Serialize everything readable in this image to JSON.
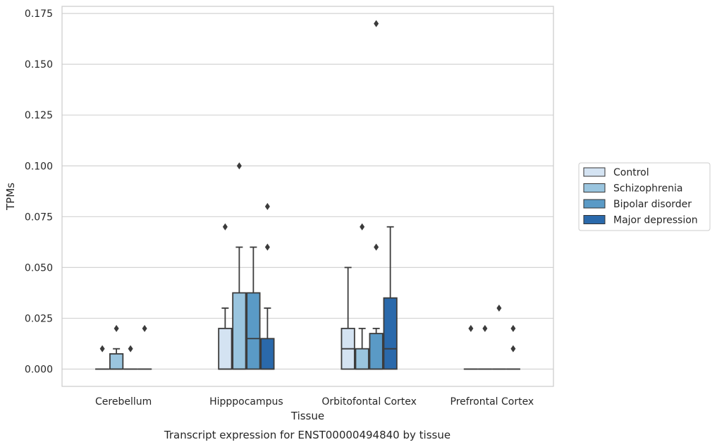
{
  "chart_data": {
    "type": "boxplot",
    "caption": "Transcript expression for ENST00000494840 by tissue",
    "xlabel": "Tissue",
    "ylabel": "TPMs",
    "ylim": [
      -0.0085,
      0.1785
    ],
    "yticks": [
      "0.000",
      "0.025",
      "0.050",
      "0.075",
      "0.100",
      "0.125",
      "0.150",
      "0.175"
    ],
    "ytick_values": [
      0,
      0.025,
      0.05,
      0.075,
      0.1,
      0.125,
      0.15,
      0.175
    ],
    "grid": true,
    "legend_position": "right",
    "categories": [
      "Cerebellum",
      "Hipppocampus",
      "Orbitofontal Cortex",
      "Prefrontal Cortex"
    ],
    "series": [
      {
        "name": "Control",
        "color": "#d4e3f2",
        "boxes": [
          {
            "q1": 0,
            "median": 0,
            "q3": 0,
            "whisker_low": 0,
            "whisker_high": 0,
            "outliers": [
              0.01
            ]
          },
          {
            "q1": 0,
            "median": 0,
            "q3": 0.02,
            "whisker_low": 0,
            "whisker_high": 0.03,
            "outliers": [
              0.07
            ]
          },
          {
            "q1": 0,
            "median": 0.01,
            "q3": 0.02,
            "whisker_low": 0,
            "whisker_high": 0.05,
            "outliers": []
          },
          {
            "q1": 0,
            "median": 0,
            "q3": 0,
            "whisker_low": 0,
            "whisker_high": 0,
            "outliers": [
              0.02
            ]
          }
        ]
      },
      {
        "name": "Schizophrenia",
        "color": "#9ac5df",
        "boxes": [
          {
            "q1": 0,
            "median": 0,
            "q3": 0.0075,
            "whisker_low": 0,
            "whisker_high": 0.01,
            "outliers": [
              0.02
            ]
          },
          {
            "q1": 0,
            "median": 0,
            "q3": 0.0375,
            "whisker_low": 0,
            "whisker_high": 0.06,
            "outliers": [
              0.1
            ]
          },
          {
            "q1": 0,
            "median": 0,
            "q3": 0.01,
            "whisker_low": 0,
            "whisker_high": 0.02,
            "outliers": [
              0.07
            ]
          },
          {
            "q1": 0,
            "median": 0,
            "q3": 0,
            "whisker_low": 0,
            "whisker_high": 0,
            "outliers": [
              0.02
            ]
          }
        ]
      },
      {
        "name": "Bipolar disorder",
        "color": "#5a9ac6",
        "boxes": [
          {
            "q1": 0,
            "median": 0,
            "q3": 0,
            "whisker_low": 0,
            "whisker_high": 0,
            "outliers": [
              0.01
            ]
          },
          {
            "q1": 0,
            "median": 0.015,
            "q3": 0.0375,
            "whisker_low": 0,
            "whisker_high": 0.06,
            "outliers": []
          },
          {
            "q1": 0,
            "median": 0,
            "q3": 0.0175,
            "whisker_low": 0,
            "whisker_high": 0.02,
            "outliers": [
              0.06,
              0.17
            ]
          },
          {
            "q1": 0,
            "median": 0,
            "q3": 0,
            "whisker_low": 0,
            "whisker_high": 0,
            "outliers": [
              0.03
            ]
          }
        ]
      },
      {
        "name": "Major depression",
        "color": "#2a69ab",
        "boxes": [
          {
            "q1": 0,
            "median": 0,
            "q3": 0,
            "whisker_low": 0,
            "whisker_high": 0,
            "outliers": [
              0.02
            ]
          },
          {
            "q1": 0,
            "median": 0,
            "q3": 0.015,
            "whisker_low": 0,
            "whisker_high": 0.03,
            "outliers": [
              0.06,
              0.08
            ]
          },
          {
            "q1": 0,
            "median": 0.01,
            "q3": 0.035,
            "whisker_low": 0,
            "whisker_high": 0.07,
            "outliers": []
          },
          {
            "q1": 0,
            "median": 0,
            "q3": 0,
            "whisker_low": 0,
            "whisker_high": 0,
            "outliers": [
              0.01,
              0.02
            ]
          }
        ]
      }
    ]
  }
}
